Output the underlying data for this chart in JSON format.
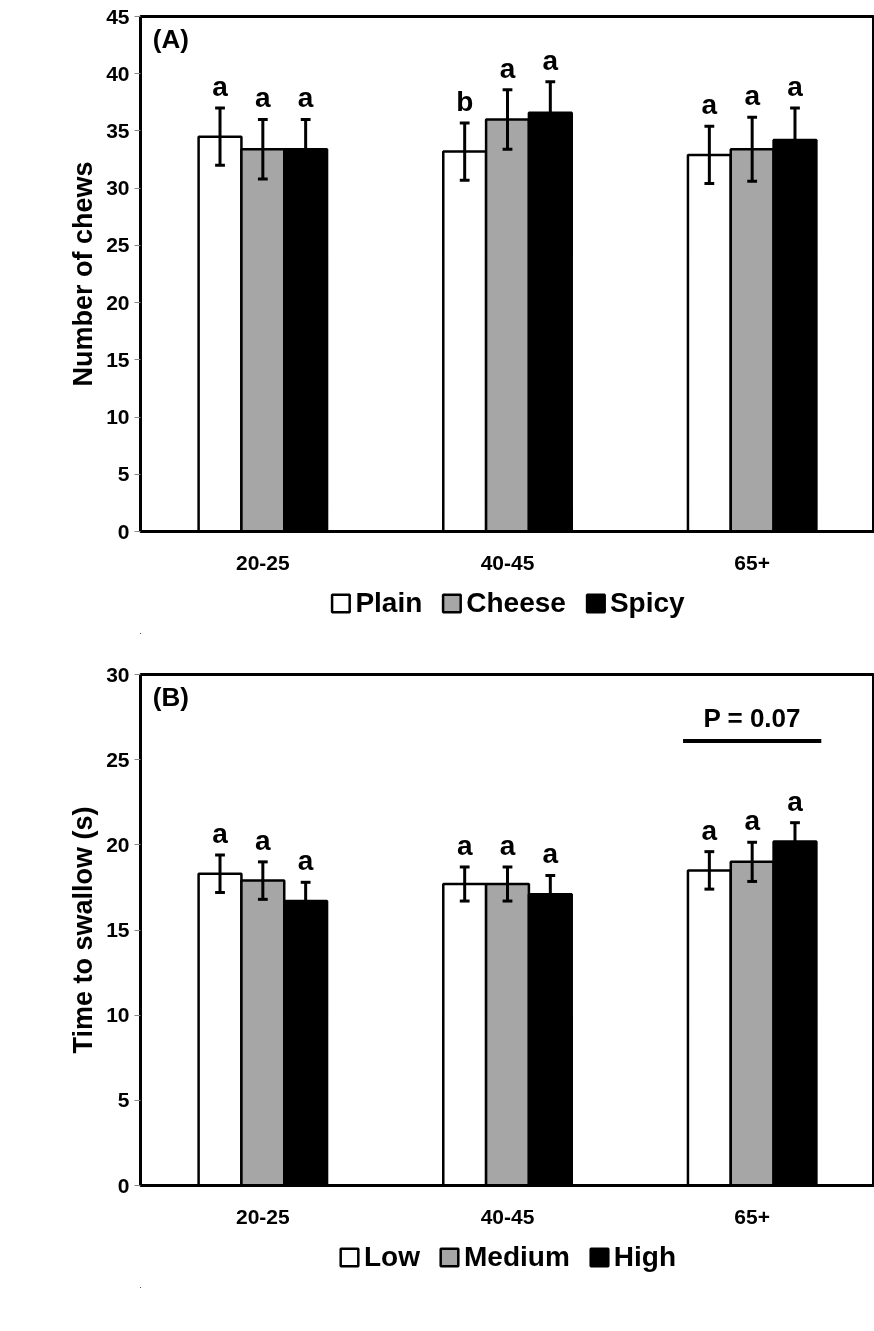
{
  "chart_data": [
    {
      "type": "bar",
      "title": "(A)",
      "categories": [
        "20-25",
        "40-45",
        "65+"
      ],
      "ylabel": "Number of chews",
      "ylim": [
        0,
        45
      ],
      "yticks": [
        0,
        5,
        10,
        15,
        20,
        25,
        30,
        35,
        40,
        45
      ],
      "grid": false,
      "legend": "bottom",
      "series": [
        {
          "name": "Plain",
          "color": "#ffffff",
          "values": [
            34.5,
            33.2,
            32.9
          ],
          "errors": [
            2.5,
            2.5,
            2.5
          ],
          "value_labels": [
            "a",
            "b",
            "a"
          ]
        },
        {
          "name": "Cheese",
          "color": "#a6a6a6",
          "values": [
            33.4,
            36.0,
            33.4
          ],
          "errors": [
            2.6,
            2.6,
            2.8
          ],
          "value_labels": [
            "a",
            "a",
            "a"
          ]
        },
        {
          "name": "Spicy",
          "color": "#000000",
          "values": [
            33.4,
            36.6,
            34.2
          ],
          "errors": [
            2.6,
            2.7,
            2.8
          ],
          "value_labels": [
            "a",
            "a",
            "a"
          ]
        }
      ]
    },
    {
      "type": "bar",
      "title": "(B)",
      "categories": [
        "20-25",
        "40-45",
        "65+"
      ],
      "ylabel": "Time to swallow (s)",
      "ylim": [
        0,
        30
      ],
      "yticks": [
        0,
        5,
        10,
        15,
        20,
        25,
        30
      ],
      "grid": false,
      "legend": "bottom",
      "annotations": [
        "P = 0.07"
      ],
      "series": [
        {
          "name": "Low",
          "color": "#ffffff",
          "values": [
            18.3,
            17.7,
            18.5
          ],
          "errors": [
            1.1,
            1.0,
            1.1
          ],
          "value_labels": [
            "a",
            "a",
            "a"
          ]
        },
        {
          "name": "Medium",
          "color": "#a6a6a6",
          "values": [
            17.9,
            17.7,
            19.0
          ],
          "errors": [
            1.1,
            1.0,
            1.15
          ],
          "value_labels": [
            "a",
            "a",
            "a"
          ]
        },
        {
          "name": "High",
          "color": "#000000",
          "values": [
            16.7,
            17.1,
            20.2
          ],
          "errors": [
            1.1,
            1.1,
            1.1
          ],
          "value_labels": [
            "a",
            "a",
            "a"
          ]
        }
      ]
    }
  ]
}
